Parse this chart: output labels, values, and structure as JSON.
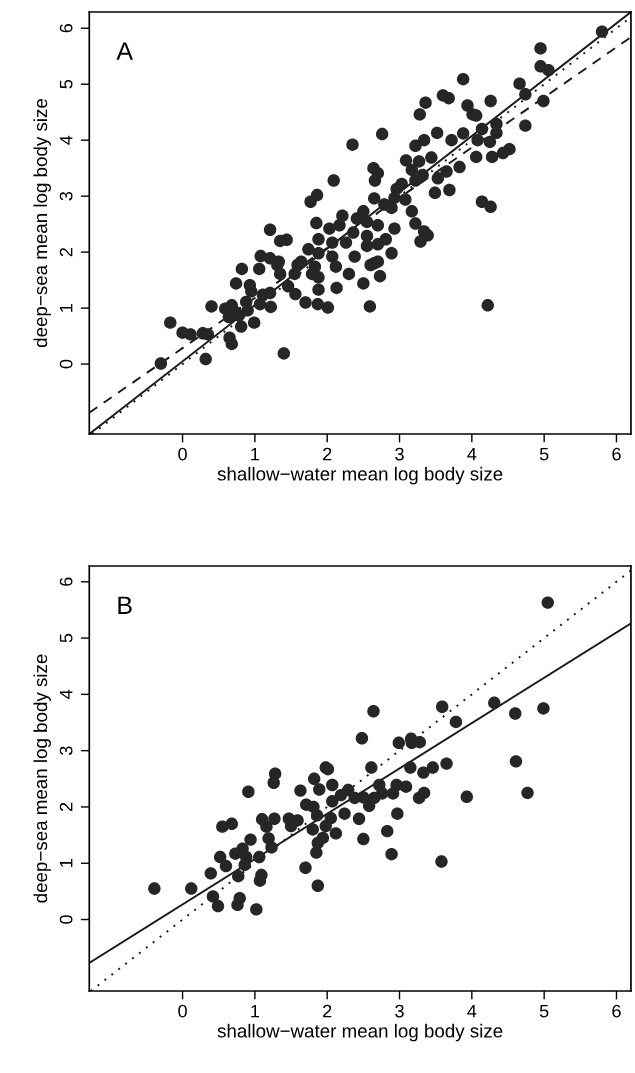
{
  "chart_data": [
    {
      "type": "scatter",
      "xlabel": "shallow−water mean log body size",
      "ylabel": "deep−sea mean log body size",
      "annotations": [
        "A"
      ],
      "xlim": [
        -1.29,
        6.2
      ],
      "ylim": [
        -1.25,
        6.29
      ],
      "xticks": [
        0,
        1,
        2,
        3,
        4,
        5,
        6
      ],
      "yticks": [
        0,
        1,
        2,
        3,
        4,
        5,
        6
      ],
      "grid": false,
      "legend": false,
      "marker": "circle",
      "series": [
        {
          "color": "#262626",
          "x": [
            5.8,
            4.95,
            4.95,
            5.06,
            4.99,
            4.66,
            4.74,
            4.74,
            3.88,
            4.26,
            3.6,
            3.68,
            3.36,
            3.28,
            3.94,
            4.01,
            4.06,
            3.52,
            4.14,
            4.34,
            4.34,
            4.25,
            4.08,
            3.88,
            3.72,
            4.52,
            4.43,
            4.28,
            4.06,
            3.83,
            3.65,
            3.53,
            3.49,
            3.69,
            4.14,
            4.26,
            4.22,
            3.34,
            3.22,
            2.76,
            2.35,
            2.09,
            2.64,
            2.7,
            2.66,
            3.09,
            3.27,
            3.17,
            3.32,
            3.22,
            3.44,
            3.03,
            2.96,
            2.93,
            3.08,
            2.65,
            2.79,
            2.89,
            3.17,
            3.22,
            3.34,
            3.39,
            3.29,
            2.93,
            2.89,
            2.81,
            2.7,
            2.5,
            2.41,
            2.55,
            2.7,
            2.21,
            1.86,
            1.77,
            1.85,
            2.03,
            2.17,
            2.36,
            2.55,
            2.26,
            2.07,
            1.88,
            1.74,
            1.88,
            2.07,
            2.38,
            2.55,
            2.65,
            2.7,
            2.6,
            2.12,
            1.83,
            1.59,
            1.55,
            1.64,
            1.79,
            1.88,
            1.88,
            2.3,
            2.13,
            2.5,
            2.73,
            2.59,
            1.7,
            1.87,
            2.01,
            1.56,
            1.46,
            1.35,
            1.31,
            1.21,
            1.35,
            1.44,
            1.08,
            1.21,
            1.33,
            1.06,
            0.82,
            0.74,
            0.93,
            0.95,
            1.11,
            1.21,
            1.07,
            1.22,
            0.4,
            0.59,
            0.68,
            0.73,
            0.88,
            0.9,
            0.64,
            0.78,
            0.99,
            0.81,
            0.65,
            0.68,
            -0.17,
            0.0,
            0.11,
            0.28,
            0.35,
            0.32,
            -0.3,
            1.4
          ],
          "values": [
            5.94,
            5.64,
            5.32,
            5.25,
            4.7,
            5.01,
            4.82,
            4.26,
            5.09,
            4.7,
            4.8,
            4.75,
            4.67,
            4.46,
            4.62,
            4.46,
            4.44,
            4.13,
            4.2,
            4.29,
            4.13,
            3.97,
            4.0,
            4.12,
            4.0,
            3.84,
            3.77,
            3.7,
            3.7,
            3.52,
            3.44,
            3.32,
            3.06,
            3.11,
            2.9,
            2.81,
            1.05,
            4.0,
            3.9,
            4.11,
            3.92,
            3.28,
            3.5,
            3.41,
            3.28,
            3.64,
            3.62,
            3.47,
            3.38,
            3.28,
            3.69,
            3.22,
            3.13,
            2.97,
            2.94,
            2.96,
            2.85,
            2.79,
            2.73,
            2.51,
            2.37,
            2.3,
            2.19,
            2.42,
            1.98,
            2.23,
            2.14,
            2.73,
            2.6,
            2.54,
            2.48,
            2.65,
            3.02,
            2.9,
            2.52,
            2.42,
            2.48,
            2.35,
            2.29,
            2.17,
            2.17,
            2.23,
            2.05,
            1.98,
            1.92,
            1.92,
            2.11,
            1.8,
            1.83,
            1.77,
            1.74,
            1.74,
            1.77,
            1.61,
            1.83,
            1.61,
            1.55,
            1.33,
            1.61,
            1.36,
            1.44,
            1.57,
            1.03,
            1.1,
            1.07,
            1.01,
            1.25,
            1.39,
            1.61,
            1.77,
            2.4,
            2.2,
            2.22,
            1.93,
            1.89,
            1.83,
            1.7,
            1.7,
            1.44,
            1.41,
            1.3,
            1.24,
            1.27,
            1.07,
            1.02,
            1.03,
            0.99,
            1.05,
            0.93,
            1.11,
            0.96,
            0.84,
            0.87,
            0.74,
            0.67,
            0.47,
            0.36,
            0.74,
            0.56,
            0.53,
            0.55,
            0.53,
            0.09,
            0.01,
            0.19
          ]
        },
        {
          "type": "line",
          "line_style": "solid",
          "color": "#1a1a1a",
          "x": [
            -1.29,
            6.2
          ],
          "values": [
            -1.25,
            6.29
          ],
          "marker": "none"
        },
        {
          "type": "line",
          "line_style": "dashed",
          "color": "#1a1a1a",
          "x": [
            -1.29,
            6.2
          ],
          "values": [
            -0.87,
            5.84
          ],
          "marker": "none"
        },
        {
          "type": "line",
          "line_style": "dotted",
          "color": "#1a1a1a",
          "x": [
            -1.25,
            6.2
          ],
          "values": [
            -1.25,
            6.2
          ],
          "marker": "none"
        }
      ]
    },
    {
      "type": "scatter",
      "xlabel": "shallow−water mean log body size",
      "ylabel": "deep−sea mean log body size",
      "annotations": [
        "B"
      ],
      "xlim": [
        -1.29,
        6.2
      ],
      "ylim": [
        -1.27,
        6.28
      ],
      "xticks": [
        0,
        1,
        2,
        3,
        4,
        5,
        6
      ],
      "yticks": [
        0,
        1,
        2,
        3,
        4,
        5,
        6
      ],
      "grid": false,
      "legend": false,
      "marker": "circle",
      "series": [
        {
          "color": "#262626",
          "x": [
            5.05,
            3.59,
            4.31,
            4.6,
            4.99,
            3.78,
            2.64,
            2.48,
            2.99,
            3.16,
            3.17,
            3.28,
            4.61,
            4.77,
            3.93,
            3.65,
            3.46,
            3.33,
            3.15,
            3.09,
            2.96,
            2.91,
            3.34,
            3.27,
            2.76,
            2.72,
            2.61,
            2.65,
            2.5,
            2.38,
            2.29,
            2.19,
            2.58,
            2.44,
            2.5,
            2.83,
            2.97,
            2.89,
            3.58,
            1.98,
            2.01,
            2.07,
            1.82,
            1.89,
            1.63,
            2.07,
            2.24,
            2.12,
            2.05,
            1.98,
            1.71,
            1.81,
            1.86,
            1.8,
            1.94,
            1.87,
            1.85,
            1.7,
            1.87,
            1.28,
            1.26,
            0.91,
            1.27,
            1.1,
            1.16,
            1.47,
            1.5,
            1.59,
            0.68,
            0.55,
            0.94,
            1.19,
            1.23,
            0.83,
            0.73,
            0.88,
            1.06,
            0.52,
            0.6,
            0.86,
            0.39,
            0.77,
            1.09,
            1.07,
            -0.39,
            0.12,
            0.42,
            0.49,
            0.79,
            0.76,
            1.02
          ],
          "values": [
            5.63,
            3.78,
            3.85,
            3.66,
            3.75,
            3.51,
            3.7,
            3.22,
            3.14,
            3.21,
            3.14,
            3.15,
            2.81,
            2.25,
            2.18,
            2.77,
            2.7,
            2.61,
            2.7,
            2.36,
            2.39,
            2.24,
            2.25,
            2.16,
            2.24,
            2.39,
            2.7,
            2.16,
            2.17,
            2.16,
            2.3,
            2.21,
            2.02,
            1.79,
            1.43,
            1.57,
            1.88,
            1.16,
            1.03,
            2.7,
            2.67,
            2.39,
            2.5,
            2.31,
            2.29,
            2.1,
            1.88,
            1.53,
            1.8,
            1.66,
            2.04,
            2.0,
            1.85,
            1.6,
            1.45,
            1.36,
            1.19,
            0.92,
            0.6,
            2.59,
            2.43,
            2.27,
            1.79,
            1.78,
            1.65,
            1.79,
            1.66,
            1.76,
            1.7,
            1.65,
            1.42,
            1.44,
            1.28,
            1.26,
            1.17,
            1.11,
            1.11,
            1.11,
            0.95,
            0.97,
            0.82,
            0.77,
            0.79,
            0.69,
            0.55,
            0.55,
            0.41,
            0.24,
            0.38,
            0.26,
            0.18
          ]
        },
        {
          "type": "line",
          "line_style": "solid",
          "color": "#1a1a1a",
          "x": [
            -1.29,
            6.2
          ],
          "values": [
            -0.77,
            5.26
          ],
          "marker": "none"
        },
        {
          "type": "line",
          "line_style": "dotted",
          "color": "#1a1a1a",
          "x": [
            -1.27,
            6.2
          ],
          "values": [
            -1.27,
            6.2
          ],
          "marker": "none"
        }
      ]
    }
  ]
}
